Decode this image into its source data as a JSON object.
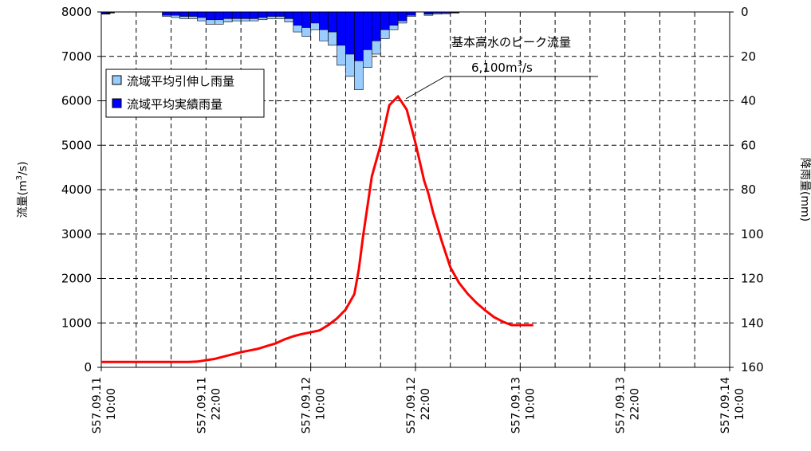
{
  "chart_data": {
    "type": "line",
    "annotation": {
      "title": "基本高水のピーク流量",
      "value": "6,100",
      "unit_prefix": "m",
      "unit_sup": "3",
      "unit_suffix": "/s"
    },
    "legend": [
      {
        "label": "流域平均引伸し雨量",
        "color": "#99ccff"
      },
      {
        "label": "流域平均実績雨量",
        "color": "#0000ff"
      }
    ],
    "legend_position": "top-left",
    "y_left": {
      "label_main": "流量(m",
      "label_sup": "3",
      "label_end": "/s)",
      "ticks": [
        "0",
        "1000",
        "2000",
        "3000",
        "4000",
        "5000",
        "6000",
        "7000",
        "8000"
      ],
      "range": [
        0,
        8000
      ]
    },
    "y_right": {
      "label": "降雨量(mm)",
      "ticks": [
        "0",
        "20",
        "40",
        "60",
        "80",
        "100",
        "120",
        "140",
        "160"
      ],
      "range": [
        0,
        160
      ],
      "inverted": true
    },
    "x": {
      "range_hours": [
        0,
        72
      ],
      "ticks": [
        {
          "date": "S57.09.11",
          "time": "10:00"
        },
        {
          "date": "S57.09.11",
          "time": "22:00"
        },
        {
          "date": "S57.09.12",
          "time": "10:00"
        },
        {
          "date": "S57.09.12",
          "time": "22:00"
        },
        {
          "date": "S57.09.13",
          "time": "10:00"
        },
        {
          "date": "S57.09.13",
          "time": "22:00"
        },
        {
          "date": "S57.09.14",
          "time": "10:00"
        }
      ]
    },
    "grid": true,
    "discharge": {
      "color": "#ff0000",
      "x": [
        0,
        10,
        11,
        12,
        13,
        14,
        15,
        16,
        17,
        18,
        19,
        20,
        21,
        22,
        23,
        24,
        25,
        26,
        27,
        28,
        29,
        29.5,
        30,
        31,
        32,
        33,
        34,
        35,
        36,
        37,
        37.5,
        38,
        39,
        40,
        41,
        42,
        43,
        44,
        45,
        46,
        47,
        48,
        49,
        49.5
      ],
      "y": [
        120,
        120,
        130,
        160,
        190,
        240,
        290,
        340,
        380,
        420,
        480,
        540,
        630,
        700,
        750,
        790,
        830,
        950,
        1100,
        1300,
        1650,
        2200,
        2950,
        4300,
        5000,
        5900,
        6100,
        5800,
        5050,
        4200,
        3900,
        3500,
        2850,
        2250,
        1900,
        1650,
        1450,
        1280,
        1130,
        1030,
        950,
        950,
        950,
        950
      ]
    },
    "rain_observed": {
      "x": [
        0.5,
        1,
        7.5,
        8.5,
        9.5,
        10.5,
        11.5,
        12.5,
        13.5,
        14.5,
        15.5,
        16.5,
        17.5,
        18.5,
        19.5,
        20.5,
        21.5,
        22.5,
        23.5,
        24.5,
        25.5,
        26.5,
        27.5,
        28.5,
        29.5,
        30.5,
        31.5,
        32.5,
        33.5,
        34.5,
        35.5,
        37.5,
        38.5,
        39.5,
        40.5
      ],
      "y": [
        0.8,
        0.3,
        1.5,
        1.5,
        2,
        2,
        2.5,
        3.5,
        3.5,
        3,
        3,
        3,
        3,
        2.5,
        2,
        2,
        3,
        6,
        7,
        5,
        8,
        9,
        15,
        19,
        22,
        17,
        13,
        8,
        6,
        4,
        1.5,
        1,
        0.5,
        0.5,
        0.3
      ]
    },
    "rain_extended": {
      "x": [
        0.5,
        1,
        7.5,
        8.5,
        9.5,
        10.5,
        11.5,
        12.5,
        13.5,
        14.5,
        15.5,
        16.5,
        17.5,
        18.5,
        19.5,
        20.5,
        21.5,
        22.5,
        23.5,
        24.5,
        25.5,
        26.5,
        27.5,
        28.5,
        29.5,
        30.5,
        31.5,
        32.5,
        33.5,
        34.5,
        35.5,
        37.5,
        38.5,
        39.5,
        40.5
      ],
      "y": [
        1,
        0.5,
        2,
        2.5,
        3,
        3,
        4,
        5.5,
        5.5,
        4.5,
        4,
        4,
        4,
        3.5,
        3,
        3,
        4.5,
        9,
        11,
        8,
        13,
        15,
        24,
        29,
        35,
        25,
        19,
        12,
        8,
        5,
        2,
        1.5,
        1,
        0.8,
        0.5
      ]
    }
  }
}
